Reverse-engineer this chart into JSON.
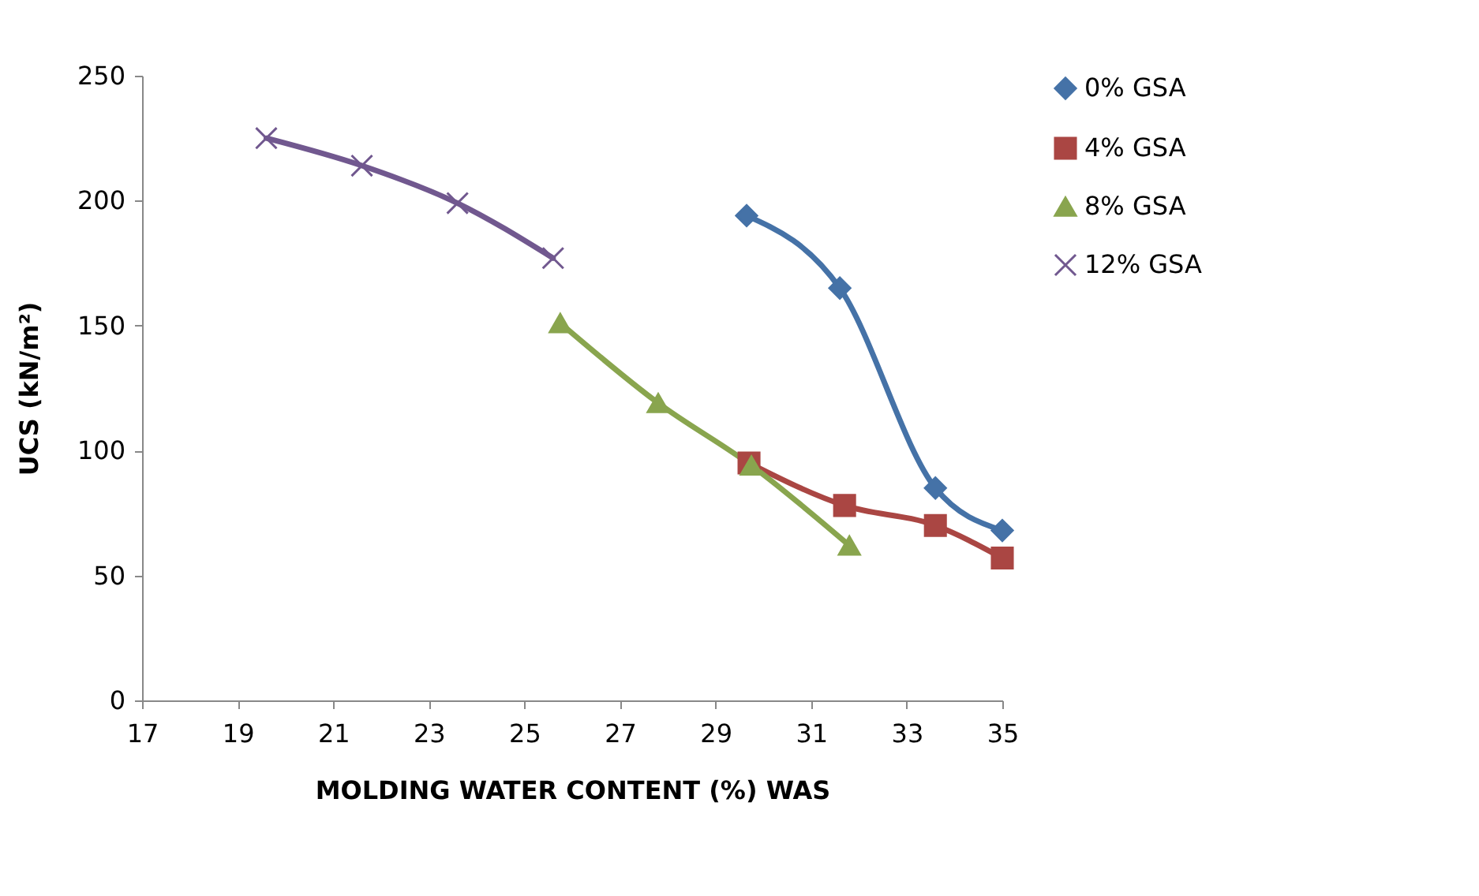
{
  "chart_data": {
    "type": "line",
    "xlabel": "MOLDING WATER CONTENT  (%) WAS",
    "ylabel": "UCS (kN/m²)",
    "xlim": [
      17,
      35
    ],
    "xticks": [
      17,
      19,
      21,
      23,
      25,
      27,
      29,
      31,
      33,
      35
    ],
    "ylim": [
      0,
      250
    ],
    "yticks": [
      0,
      50,
      100,
      150,
      200,
      250
    ],
    "grid": false,
    "legend": "right",
    "line_style": "solid",
    "series": [
      {
        "name": "0% GSA",
        "color": "#4572a7",
        "marker": "diamond",
        "x": [
          29.65,
          31.6,
          33.6,
          35
        ],
        "values": [
          194,
          165,
          85,
          68
        ]
      },
      {
        "name": "4% GSA",
        "color": "#aa4643",
        "marker": "square",
        "x": [
          29.7,
          31.7,
          33.6,
          35
        ],
        "values": [
          95,
          78,
          70,
          57
        ]
      },
      {
        "name": "8% GSA",
        "color": "#89a54e",
        "marker": "triangle",
        "x": [
          25.75,
          27.8,
          29.75,
          31.8
        ],
        "values": [
          151,
          119,
          94,
          62
        ]
      },
      {
        "name": "12% GSA",
        "color": "#71588f",
        "marker": "cross",
        "x": [
          19.6,
          21.6,
          23.6,
          25.6
        ],
        "values": [
          225,
          214,
          199,
          177
        ]
      }
    ]
  }
}
